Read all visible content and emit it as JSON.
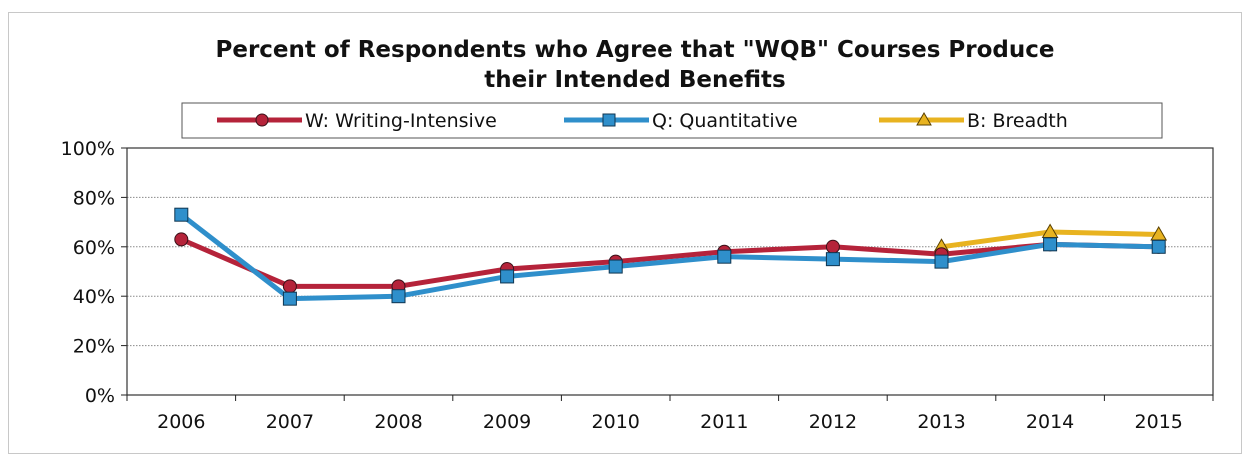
{
  "chart_data": {
    "type": "line",
    "title_line1": "Percent of Respondents who Agree that \"WQB\" Courses Produce",
    "title_line2": "their Intended Benefits",
    "categories": [
      "2006",
      "2007",
      "2008",
      "2009",
      "2010",
      "2011",
      "2012",
      "2013",
      "2014",
      "2015"
    ],
    "ylim": [
      0,
      100
    ],
    "yticks": [
      "0%",
      "20%",
      "40%",
      "60%",
      "80%",
      "100%"
    ],
    "grid": true,
    "legend_position": "top",
    "series": [
      {
        "name": "W: Writing-Intensive",
        "color": "#b5233a",
        "marker": "circle",
        "values": [
          63,
          44,
          44,
          51,
          54,
          58,
          60,
          57,
          61,
          60
        ]
      },
      {
        "name": "Q: Quantitative",
        "color": "#2f8fcb",
        "marker": "square",
        "values": [
          73,
          39,
          40,
          48,
          52,
          56,
          55,
          54,
          61,
          60
        ]
      },
      {
        "name": "B: Breadth",
        "color": "#e8b320",
        "marker": "triangle",
        "values": [
          null,
          null,
          null,
          null,
          null,
          null,
          null,
          60,
          66,
          65
        ]
      }
    ]
  }
}
